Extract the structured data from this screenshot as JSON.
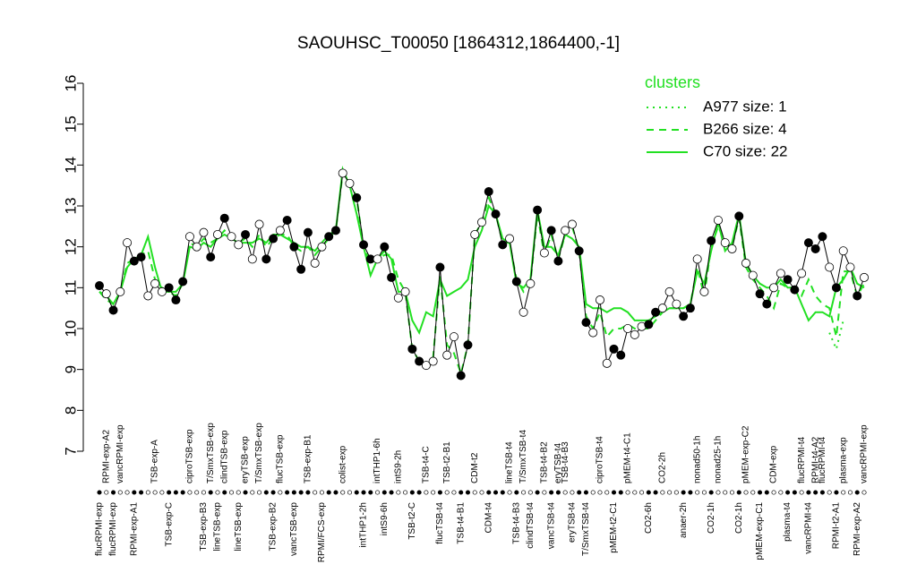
{
  "chart_data": {
    "type": "line",
    "title": "SAOUHSC_T00050 [1864312,1864400,-1]",
    "legend_title": "clusters",
    "categories": [
      "flucRPMI-exp",
      "RPMI-exp-A2",
      "flucRPMI-exp",
      "vancRPMI-exp",
      null,
      "RPMI-exp-A1",
      null,
      null,
      "TSB-exp-A",
      null,
      "TSB-exp-C",
      null,
      null,
      "ciproTSB-exp",
      null,
      "TSB-exp-B3",
      "T/SmxTSB-exp",
      "lineTSB-exp",
      "clindTSB-exp",
      null,
      "lineTSB-exp",
      "eryTSB-exp",
      null,
      "T/SmxTSB-exp",
      null,
      "TSB-exp-B2",
      "flucTSB-exp",
      null,
      "vancTSB-exp",
      null,
      "TSB-exp-B1",
      null,
      "RPMI/FCS-exp",
      null,
      null,
      "colist-exp",
      null,
      null,
      "intTHP1-2h",
      null,
      "intTHP1-6h",
      "intS9-6h",
      null,
      "intS9-2h",
      null,
      "TSB-t2-C",
      null,
      "TSB-t4-C",
      null,
      "flucTSB-t4",
      "TSB-t2-B1",
      null,
      "TSB-t4-B1",
      null,
      "CDM-t2",
      null,
      "CDM-t4",
      null,
      null,
      "lineTSB-t4",
      "TSB-t4-B3",
      "T/SmxTSB-t4",
      "clindTSB-t4",
      null,
      "TSB-t4-B2",
      "vancTSB-t4",
      "eryTSB-t4",
      "TSB-t4-B3",
      "eryTSB-t4",
      null,
      "T/SmxTSB-t4",
      null,
      "ciproTSB-t4",
      null,
      "pMEM-t2-C1",
      null,
      "pMEM-t4-C1",
      null,
      null,
      "CO2-6h",
      null,
      "CO2-2h",
      null,
      null,
      "anaer-2h",
      null,
      "nonad50-1h",
      null,
      "CO2-1h",
      "nonad25-1h",
      null,
      null,
      "CO2-1h",
      "pMEM-exp-C2",
      null,
      "pMEM-exp-C1",
      null,
      "CDM-exp",
      null,
      "plasma-t4",
      null,
      "flucRPMI-t4",
      "vancRPMI-t4",
      "RPMI-t4-A2",
      "flucRPMI-t4",
      null,
      "RPMI-t2-A1",
      "plasma-exp",
      null,
      "RPMI-exp-A2",
      "vancRPMI-exp"
    ],
    "label_side": [
      "bottom",
      "top",
      "bottom",
      "top",
      null,
      "bottom",
      null,
      null,
      "top",
      null,
      "bottom",
      null,
      null,
      "top",
      null,
      "bottom",
      "top",
      "bottom",
      "top",
      null,
      "bottom",
      "top",
      null,
      "top",
      null,
      "bottom",
      "top",
      null,
      "bottom",
      null,
      "top",
      null,
      "bottom",
      null,
      null,
      "top",
      null,
      null,
      "bottom",
      null,
      "top",
      "bottom",
      null,
      "top",
      null,
      "bottom",
      null,
      "top",
      null,
      "bottom",
      "top",
      null,
      "bottom",
      null,
      "top",
      null,
      "bottom",
      null,
      null,
      "top",
      "bottom",
      "top",
      "bottom",
      null,
      "top",
      "bottom",
      "top",
      "top",
      "bottom",
      null,
      "bottom",
      null,
      "top",
      null,
      "bottom",
      null,
      "top",
      null,
      null,
      "bottom",
      null,
      "top",
      null,
      null,
      "bottom",
      null,
      "top",
      null,
      "bottom",
      "top",
      null,
      null,
      "bottom",
      "top",
      null,
      "bottom",
      null,
      "top",
      null,
      "bottom",
      null,
      "top",
      "bottom",
      "top",
      "top",
      null,
      "bottom",
      "top",
      null,
      "bottom",
      "top"
    ],
    "values": [
      11.05,
      10.85,
      10.45,
      10.9,
      12.1,
      11.65,
      11.75,
      10.8,
      11.1,
      10.9,
      11.0,
      10.7,
      11.15,
      12.25,
      12.0,
      12.35,
      11.75,
      12.3,
      12.7,
      12.25,
      12.05,
      12.3,
      11.7,
      12.55,
      11.7,
      12.2,
      12.4,
      12.65,
      12.0,
      11.45,
      12.35,
      11.6,
      12.0,
      12.25,
      12.4,
      13.8,
      13.55,
      13.2,
      12.05,
      11.7,
      11.7,
      12.0,
      11.25,
      10.75,
      10.9,
      9.5,
      9.2,
      9.1,
      9.2,
      11.5,
      9.35,
      9.8,
      8.85,
      9.6,
      12.3,
      12.6,
      13.35,
      12.8,
      12.05,
      12.2,
      11.15,
      10.4,
      11.1,
      12.9,
      11.85,
      12.4,
      11.65,
      12.4,
      12.55,
      11.9,
      10.15,
      9.9,
      10.7,
      9.15,
      9.5,
      9.35,
      10.0,
      9.85,
      10.05,
      10.1,
      10.4,
      10.5,
      10.9,
      10.6,
      10.3,
      10.5,
      11.7,
      10.9,
      12.15,
      12.65,
      12.1,
      11.95,
      12.75,
      11.6,
      11.3,
      10.85,
      10.6,
      11.0,
      11.35,
      11.2,
      10.95,
      11.35,
      12.1,
      11.95,
      12.25,
      11.5,
      11.0,
      11.9,
      11.5,
      10.8,
      11.25
    ],
    "filled": [
      true,
      false,
      true,
      false,
      false,
      true,
      true,
      false,
      false,
      false,
      true,
      true,
      true,
      false,
      false,
      false,
      true,
      false,
      true,
      false,
      false,
      true,
      false,
      false,
      true,
      true,
      false,
      true,
      true,
      true,
      true,
      false,
      false,
      true,
      true,
      false,
      false,
      true,
      true,
      true,
      false,
      true,
      true,
      false,
      false,
      true,
      true,
      false,
      false,
      true,
      false,
      false,
      true,
      true,
      false,
      false,
      true,
      true,
      true,
      false,
      true,
      false,
      false,
      true,
      false,
      true,
      true,
      false,
      false,
      true,
      true,
      false,
      false,
      false,
      true,
      true,
      false,
      false,
      false,
      true,
      true,
      false,
      false,
      false,
      true,
      true,
      false,
      false,
      true,
      false,
      false,
      false,
      true,
      false,
      false,
      true,
      true,
      false,
      false,
      true,
      true,
      false,
      true,
      true,
      true,
      false,
      true,
      false,
      false,
      true,
      false
    ],
    "series": [
      {
        "name": "A977 size: 1",
        "color": "#22e022",
        "dash": "dotted",
        "values": [
          null,
          null,
          null,
          null,
          null,
          null,
          null,
          null,
          null,
          null,
          null,
          null,
          null,
          null,
          null,
          null,
          null,
          null,
          null,
          null,
          null,
          null,
          null,
          null,
          null,
          null,
          null,
          null,
          null,
          null,
          null,
          null,
          null,
          null,
          null,
          null,
          null,
          null,
          null,
          null,
          null,
          null,
          null,
          null,
          null,
          null,
          null,
          null,
          null,
          null,
          null,
          null,
          null,
          null,
          null,
          null,
          null,
          null,
          null,
          null,
          null,
          null,
          null,
          null,
          null,
          null,
          null,
          null,
          null,
          null,
          null,
          null,
          null,
          null,
          null,
          null,
          null,
          null,
          null,
          null,
          null,
          null,
          null,
          null,
          null,
          null,
          null,
          null,
          null,
          null,
          null,
          null,
          null,
          null,
          null,
          null,
          null,
          null,
          null,
          null,
          null,
          null,
          null,
          null,
          null,
          9.9,
          9.5,
          10.2,
          null,
          null,
          null
        ]
      },
      {
        "name": "B266 size: 4",
        "color": "#22e022",
        "dash": "dashed",
        "values": [
          10.9,
          10.7,
          10.6,
          10.9,
          11.6,
          11.7,
          11.8,
          11.9,
          11.2,
          11.0,
          10.9,
          10.8,
          11.1,
          12.1,
          12.0,
          12.2,
          12.1,
          12.2,
          12.4,
          12.2,
          12.1,
          12.2,
          12.0,
          12.3,
          12.0,
          12.2,
          12.3,
          12.3,
          12.0,
          11.9,
          12.0,
          11.8,
          12.0,
          12.2,
          12.4,
          13.8,
          13.6,
          13.2,
          12.0,
          11.6,
          11.7,
          11.8,
          11.8,
          11.2,
          10.9,
          9.5,
          9.2,
          9.1,
          9.3,
          11.3,
          9.6,
          9.4,
          8.9,
          9.6,
          12.3,
          12.6,
          13.2,
          12.8,
          12.1,
          12.1,
          11.2,
          10.9,
          11.1,
          12.8,
          11.8,
          12.3,
          11.7,
          12.3,
          12.5,
          11.9,
          10.3,
          10.0,
          10.4,
          9.8,
          10.0,
          10.0,
          10.1,
          10.0,
          10.0,
          10.0,
          10.2,
          10.4,
          10.5,
          10.5,
          10.5,
          10.6,
          11.5,
          10.8,
          12.0,
          12.5,
          12.1,
          12.0,
          12.7,
          11.5,
          11.2,
          11.0,
          10.8,
          10.5,
          11.1,
          11.0,
          10.9,
          10.8,
          11.2,
          10.8,
          10.6,
          10.5,
          9.8,
          11.4,
          11.4,
          10.8,
          11.1
        ]
      },
      {
        "name": "C70 size: 22",
        "color": "#22e022",
        "dash": "solid",
        "values": [
          10.9,
          10.8,
          10.6,
          10.9,
          11.5,
          11.7,
          11.8,
          12.25,
          11.5,
          10.9,
          10.9,
          10.9,
          11.1,
          12.0,
          11.95,
          12.1,
          12.0,
          12.2,
          12.3,
          12.2,
          12.1,
          12.1,
          12.1,
          12.2,
          12.1,
          12.3,
          12.3,
          12.2,
          12.1,
          12.0,
          12.0,
          11.9,
          12.1,
          12.3,
          12.4,
          13.9,
          13.5,
          12.8,
          12.0,
          11.3,
          11.7,
          11.9,
          11.7,
          10.9,
          10.9,
          10.2,
          9.9,
          10.4,
          10.3,
          11.2,
          10.8,
          10.9,
          11.0,
          11.2,
          12.0,
          12.4,
          13.0,
          12.8,
          12.2,
          12.1,
          11.1,
          11.0,
          11.2,
          12.9,
          12.0,
          12.0,
          11.8,
          12.3,
          12.2,
          12.0,
          10.6,
          10.5,
          10.5,
          10.4,
          10.5,
          10.5,
          10.4,
          10.2,
          10.2,
          10.2,
          10.3,
          10.4,
          10.5,
          10.5,
          10.5,
          10.6,
          11.4,
          11.1,
          11.9,
          12.6,
          11.9,
          12.1,
          12.8,
          11.6,
          11.3,
          11.1,
          11.0,
          11.0,
          11.2,
          11.0,
          11.0,
          10.6,
          10.2,
          10.4,
          10.4,
          10.3,
          11.0,
          11.2,
          11.5,
          11.1,
          11.0
        ]
      }
    ],
    "ylim": [
      7,
      16
    ],
    "yticks": [
      7,
      8,
      9,
      10,
      11,
      12,
      13,
      14,
      15,
      16
    ]
  }
}
